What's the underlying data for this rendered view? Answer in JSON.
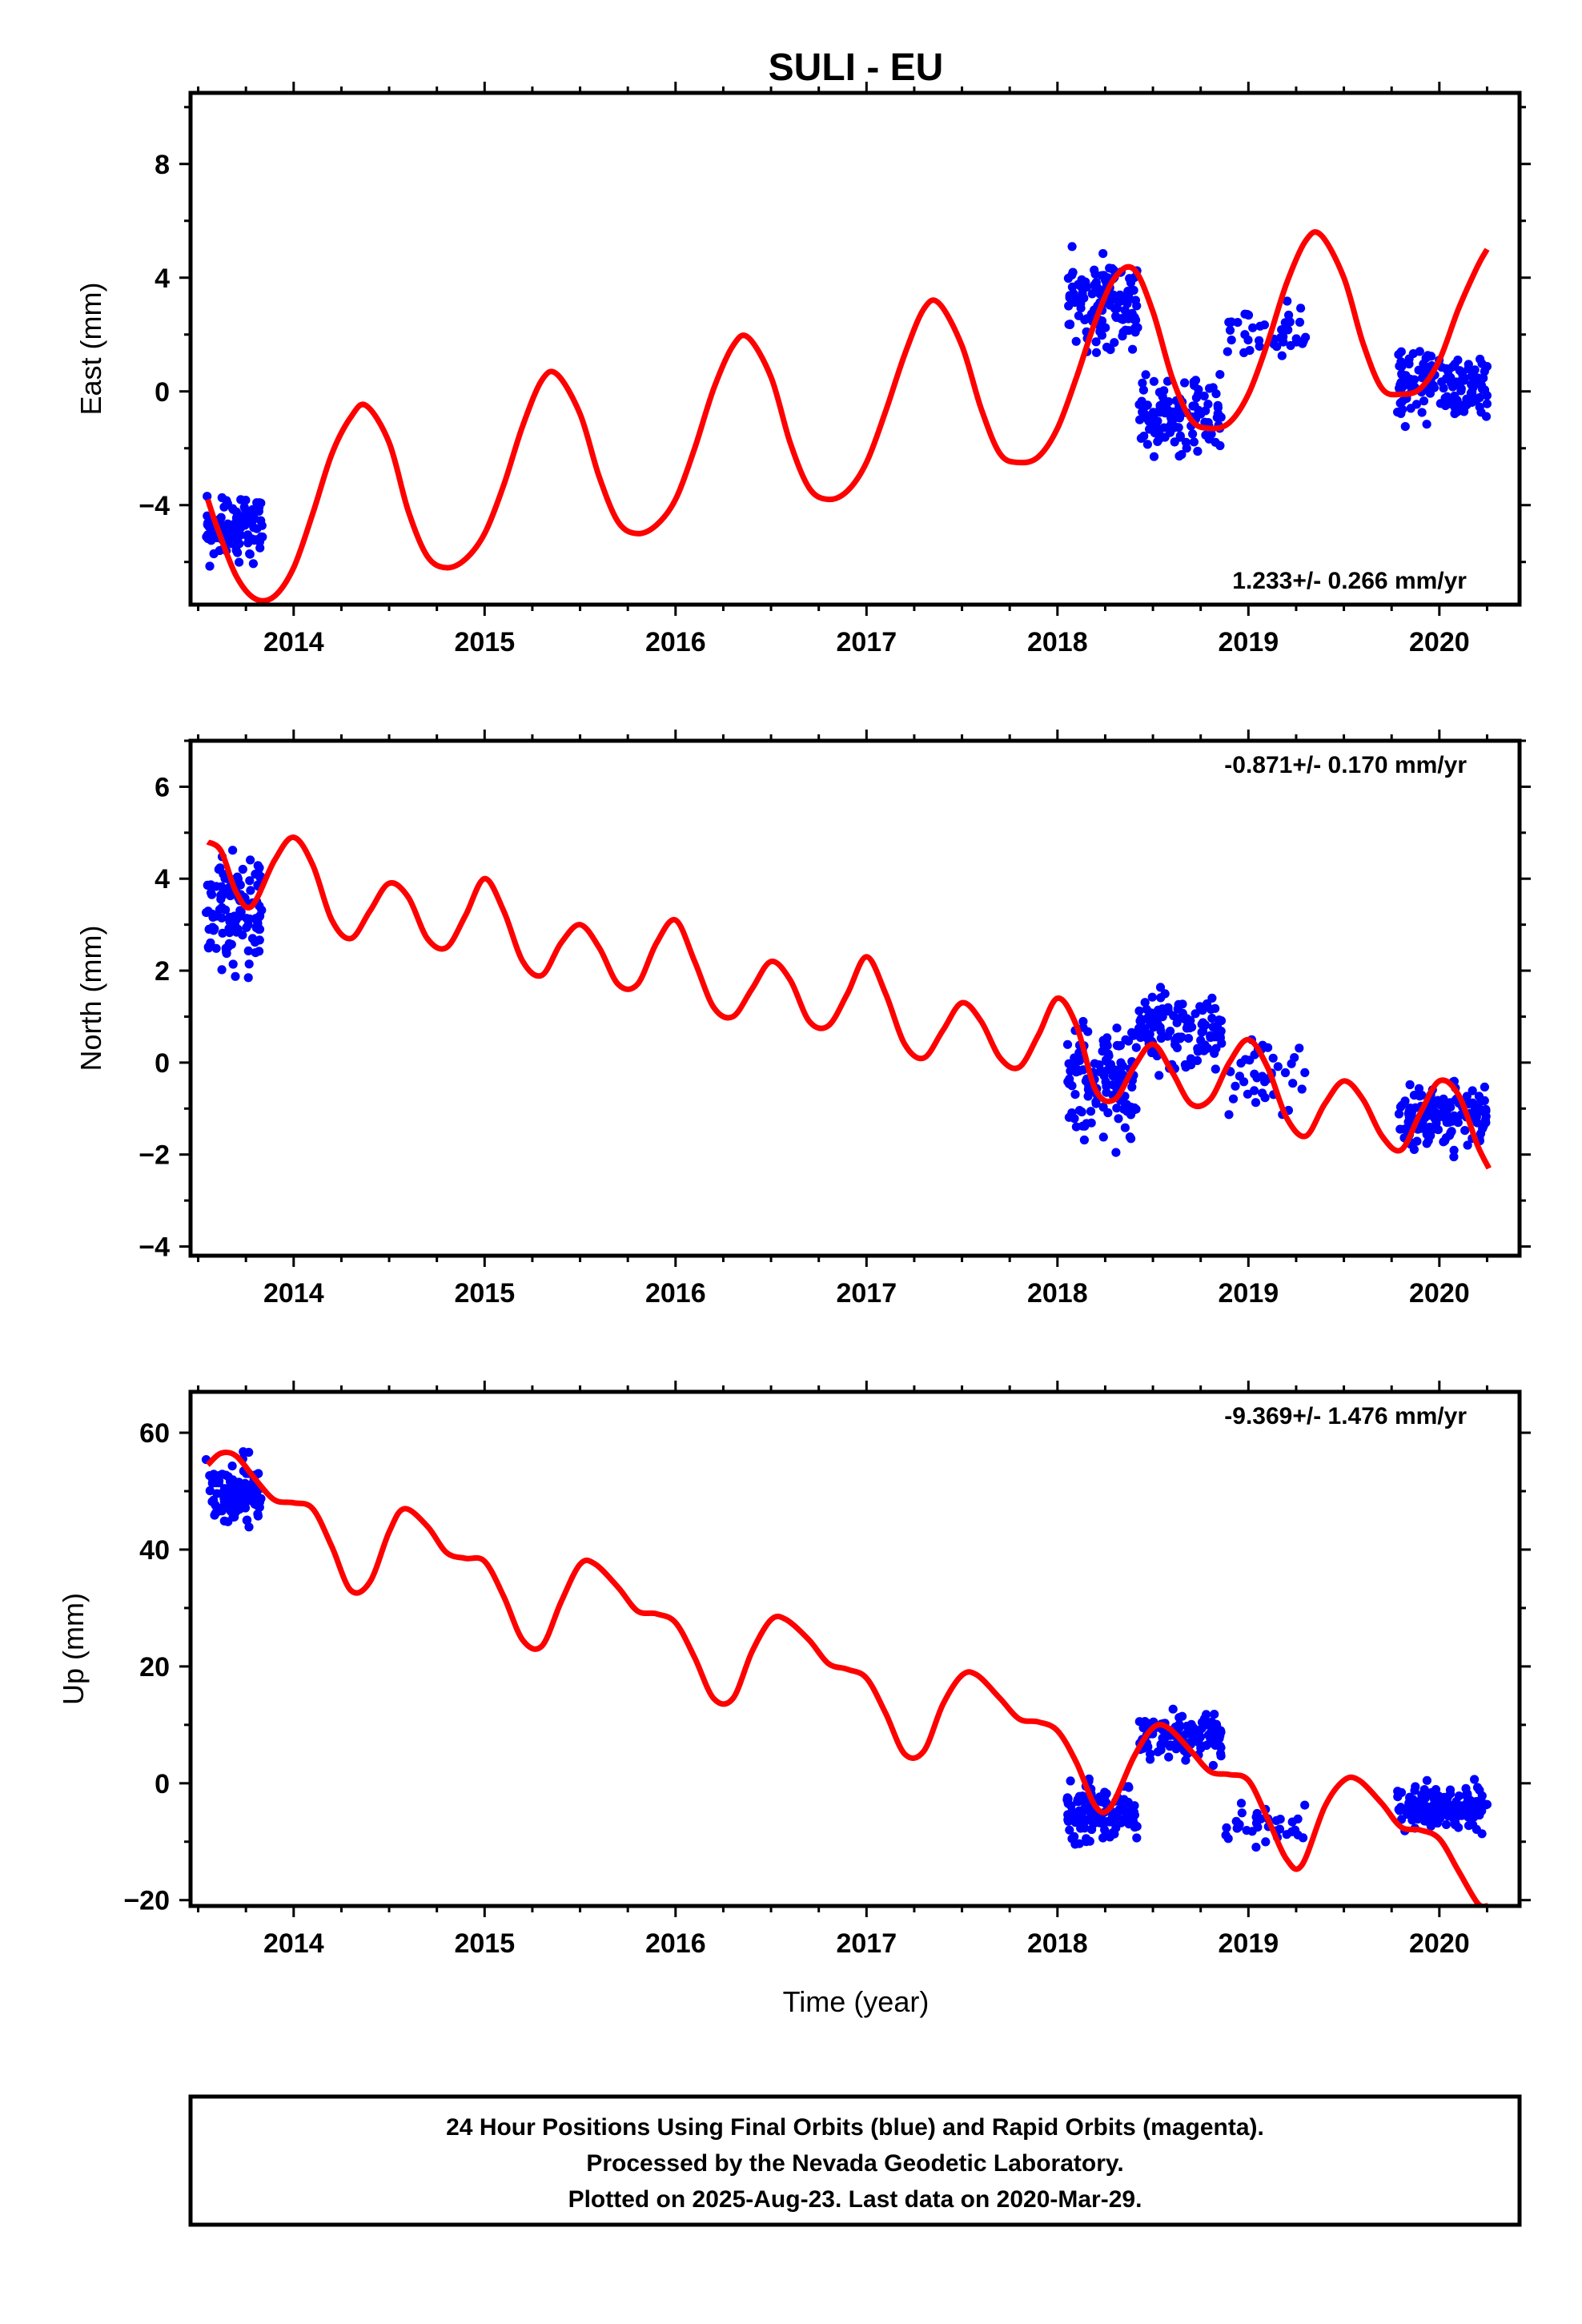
{
  "title": "SULI - EU",
  "xlabel": "Time (year)",
  "footer": {
    "lines": [
      "24 Hour Positions Using Final Orbits (blue) and Rapid Orbits (magenta).",
      "Processed by the Nevada Geodetic Laboratory.",
      "Plotted on 2025-Aug-23. Last data on 2020-Mar-29."
    ]
  },
  "colors": {
    "points": "#0000ff",
    "model": "#ff0000",
    "frame": "#000000"
  },
  "chart_data": [
    {
      "type": "scatter",
      "ylabel": "East (mm)",
      "rate_label": "1.233+/- 0.266 mm/yr",
      "xlim": [
        2013.46,
        2020.42
      ],
      "ylim": [
        -7.5,
        10.5
      ],
      "x_ticks": [
        "2014",
        "2015",
        "2016",
        "2017",
        "2018",
        "2019",
        "2020"
      ],
      "y_ticks": [
        -4,
        0,
        4,
        8
      ],
      "model": {
        "x": [
          2013.55,
          2013.6,
          2013.7,
          2013.8,
          2013.9,
          2014.0,
          2014.1,
          2014.2,
          2014.3,
          2014.38,
          2014.5,
          2014.6,
          2014.7,
          2014.8,
          2014.9,
          2015.0,
          2015.1,
          2015.2,
          2015.3,
          2015.38,
          2015.5,
          2015.6,
          2015.7,
          2015.8,
          2015.9,
          2016.0,
          2016.1,
          2016.2,
          2016.3,
          2016.38,
          2016.5,
          2016.6,
          2016.7,
          2016.8,
          2016.9,
          2017.0,
          2017.1,
          2017.2,
          2017.3,
          2017.38,
          2017.5,
          2017.6,
          2017.7,
          2017.8,
          2017.9,
          2018.0,
          2018.1,
          2018.2,
          2018.3,
          2018.4,
          2018.5,
          2018.6,
          2018.7,
          2018.8,
          2018.9,
          2019.0,
          2019.1,
          2019.2,
          2019.3,
          2019.38,
          2019.5,
          2019.6,
          2019.7,
          2019.8,
          2019.9,
          2020.0,
          2020.1,
          2020.2,
          2020.25
        ],
        "y": [
          -3.8,
          -4.8,
          -6.5,
          -7.3,
          -7.2,
          -6.2,
          -4.3,
          -2.2,
          -0.9,
          -0.5,
          -1.8,
          -4.2,
          -5.8,
          -6.2,
          -5.9,
          -5.0,
          -3.3,
          -1.2,
          0.4,
          0.6,
          -0.8,
          -3.0,
          -4.6,
          -5.0,
          -4.7,
          -3.8,
          -2.0,
          0.1,
          1.6,
          1.9,
          0.5,
          -1.8,
          -3.4,
          -3.8,
          -3.5,
          -2.5,
          -0.7,
          1.3,
          2.9,
          3.1,
          1.6,
          -0.6,
          -2.2,
          -2.5,
          -2.3,
          -1.3,
          0.5,
          2.5,
          4.0,
          4.3,
          2.8,
          0.5,
          -1.0,
          -1.3,
          -1.1,
          -0.1,
          1.7,
          3.8,
          5.3,
          5.5,
          4.0,
          1.7,
          0.1,
          -0.1,
          0.1,
          1.1,
          2.9,
          4.4,
          5.0
        ]
      },
      "points_seed": 11,
      "point_clusters": [
        {
          "x_range": [
            2013.54,
            2013.84
          ],
          "y_center": -4.8,
          "y_spread": 1.5,
          "count": 110
        },
        {
          "x_range": [
            2018.05,
            2018.42
          ],
          "y_center": 3.0,
          "y_spread": 2.2,
          "count": 130
        },
        {
          "x_range": [
            2018.42,
            2018.86
          ],
          "y_center": -0.8,
          "y_spread": 2.0,
          "count": 120
        },
        {
          "x_range": [
            2018.88,
            2019.3
          ],
          "y_center": 2.0,
          "y_spread": 1.6,
          "count": 40
        },
        {
          "x_range": [
            2019.78,
            2020.25
          ],
          "y_center": 0.2,
          "y_spread": 1.8,
          "count": 140
        }
      ]
    },
    {
      "type": "scatter",
      "ylabel": "North (mm)",
      "rate_label": "-0.871+/- 0.170 mm/yr",
      "xlim": [
        2013.46,
        2020.42
      ],
      "ylim": [
        -4.2,
        7.0
      ],
      "x_ticks": [
        "2014",
        "2015",
        "2016",
        "2017",
        "2018",
        "2019",
        "2020"
      ],
      "y_ticks": [
        -4,
        -2,
        0,
        2,
        4,
        6
      ],
      "model": {
        "x": [
          2013.55,
          2013.62,
          2013.7,
          2013.78,
          2013.9,
          2014.0,
          2014.1,
          2014.2,
          2014.3,
          2014.4,
          2014.5,
          2014.6,
          2014.7,
          2014.8,
          2014.9,
          2015.0,
          2015.1,
          2015.2,
          2015.3,
          2015.4,
          2015.5,
          2015.6,
          2015.7,
          2015.8,
          2015.9,
          2016.0,
          2016.1,
          2016.2,
          2016.3,
          2016.4,
          2016.5,
          2016.6,
          2016.7,
          2016.8,
          2016.9,
          2017.0,
          2017.1,
          2017.2,
          2017.3,
          2017.4,
          2017.5,
          2017.6,
          2017.7,
          2017.8,
          2017.9,
          2018.0,
          2018.1,
          2018.2,
          2018.3,
          2018.4,
          2018.5,
          2018.6,
          2018.7,
          2018.8,
          2018.9,
          2019.0,
          2019.1,
          2019.2,
          2019.3,
          2019.4,
          2019.5,
          2019.6,
          2019.7,
          2019.8,
          2019.9,
          2020.0,
          2020.1,
          2020.2,
          2020.26
        ],
        "y": [
          4.8,
          4.6,
          3.7,
          3.4,
          4.4,
          4.9,
          4.3,
          3.1,
          2.7,
          3.3,
          3.9,
          3.6,
          2.7,
          2.5,
          3.2,
          4.0,
          3.3,
          2.2,
          1.9,
          2.6,
          3.0,
          2.5,
          1.7,
          1.7,
          2.6,
          3.1,
          2.2,
          1.2,
          1.0,
          1.6,
          2.2,
          1.8,
          0.9,
          0.8,
          1.5,
          2.3,
          1.5,
          0.4,
          0.1,
          0.7,
          1.3,
          0.9,
          0.1,
          -0.1,
          0.6,
          1.4,
          0.8,
          -0.6,
          -0.8,
          -0.1,
          0.4,
          -0.2,
          -0.9,
          -0.8,
          0.0,
          0.5,
          -0.1,
          -1.2,
          -1.6,
          -0.9,
          -0.4,
          -0.8,
          -1.6,
          -1.9,
          -1.1,
          -0.4,
          -0.7,
          -1.8,
          -2.3
        ]
      },
      "points_seed": 29,
      "point_clusters": [
        {
          "x_range": [
            2013.54,
            2013.84
          ],
          "y_center": 3.3,
          "y_spread": 1.7,
          "count": 120
        },
        {
          "x_range": [
            2018.05,
            2018.42
          ],
          "y_center": -0.3,
          "y_spread": 1.7,
          "count": 130
        },
        {
          "x_range": [
            2018.42,
            2018.86
          ],
          "y_center": 0.7,
          "y_spread": 1.2,
          "count": 120
        },
        {
          "x_range": [
            2018.88,
            2019.3
          ],
          "y_center": -0.3,
          "y_spread": 1.1,
          "count": 40
        },
        {
          "x_range": [
            2019.78,
            2020.25
          ],
          "y_center": -1.2,
          "y_spread": 1.1,
          "count": 140
        }
      ]
    },
    {
      "type": "scatter",
      "ylabel": "Up (mm)",
      "rate_label": "-9.369+/- 1.476 mm/yr",
      "xlim": [
        2013.46,
        2020.42
      ],
      "ylim": [
        -21,
        67
      ],
      "x_ticks": [
        "2014",
        "2015",
        "2016",
        "2017",
        "2018",
        "2019",
        "2020"
      ],
      "y_ticks": [
        -20,
        0,
        20,
        40,
        60
      ],
      "model": {
        "x": [
          2013.55,
          2013.62,
          2013.7,
          2013.8,
          2013.9,
          2014.0,
          2014.1,
          2014.2,
          2014.3,
          2014.4,
          2014.5,
          2014.58,
          2014.7,
          2014.8,
          2014.9,
          2015.0,
          2015.1,
          2015.2,
          2015.3,
          2015.4,
          2015.5,
          2015.58,
          2015.7,
          2015.8,
          2015.9,
          2016.0,
          2016.1,
          2016.2,
          2016.3,
          2016.4,
          2016.5,
          2016.58,
          2016.7,
          2016.8,
          2016.9,
          2017.0,
          2017.1,
          2017.2,
          2017.3,
          2017.4,
          2017.5,
          2017.58,
          2017.7,
          2017.8,
          2017.9,
          2018.0,
          2018.1,
          2018.2,
          2018.28,
          2018.4,
          2018.5,
          2018.58,
          2018.7,
          2018.8,
          2018.9,
          2019.0,
          2019.1,
          2019.2,
          2019.28,
          2019.4,
          2019.5,
          2019.58,
          2019.7,
          2019.8,
          2019.9,
          2020.0,
          2020.1,
          2020.2,
          2020.25
        ],
        "y": [
          54.5,
          56.5,
          56.0,
          52.0,
          48.5,
          48.0,
          47.0,
          40.5,
          33.0,
          34.5,
          43.0,
          47.0,
          44.0,
          39.5,
          38.5,
          38.0,
          32.0,
          24.5,
          23.5,
          31.0,
          37.5,
          37.5,
          33.5,
          29.5,
          29.0,
          27.5,
          21.5,
          14.5,
          14.5,
          22.5,
          28.0,
          28.0,
          24.5,
          20.5,
          19.5,
          18.0,
          12.0,
          5.0,
          5.5,
          13.5,
          18.5,
          18.5,
          14.5,
          11.0,
          10.5,
          9.0,
          3.5,
          -4.0,
          -4.0,
          4.5,
          9.5,
          9.5,
          5.5,
          2.0,
          1.5,
          0.5,
          -6.0,
          -13.0,
          -14.0,
          -4.0,
          0.5,
          0.5,
          -3.5,
          -7.5,
          -8.0,
          -9.5,
          -15.0,
          -20.5,
          -21.0
        ]
      },
      "points_seed": 47,
      "point_clusters": [
        {
          "x_range": [
            2013.54,
            2013.84
          ],
          "y_center": 50.0,
          "y_spread": 8.0,
          "count": 120
        },
        {
          "x_range": [
            2018.05,
            2018.42
          ],
          "y_center": -5.0,
          "y_spread": 7.0,
          "count": 130
        },
        {
          "x_range": [
            2018.42,
            2018.86
          ],
          "y_center": 8.0,
          "y_spread": 6.0,
          "count": 120
        },
        {
          "x_range": [
            2018.88,
            2019.3
          ],
          "y_center": -7.0,
          "y_spread": 5.0,
          "count": 35
        },
        {
          "x_range": [
            2019.78,
            2020.25
          ],
          "y_center": -4.0,
          "y_spread": 5.0,
          "count": 150
        }
      ]
    }
  ]
}
